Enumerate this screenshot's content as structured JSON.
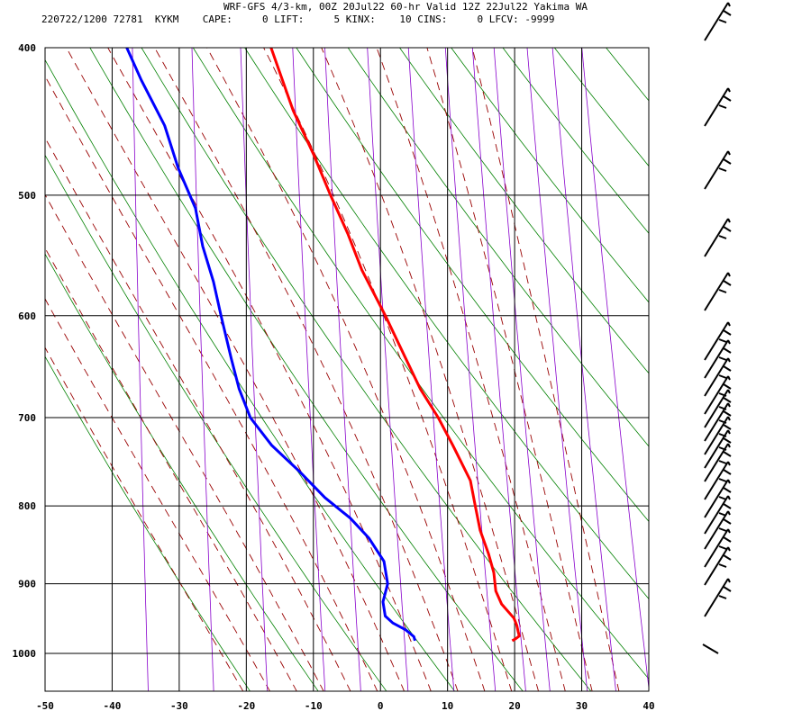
{
  "header": {
    "title": "WRF-GFS 4/3-km, 00Z 20Jul22 60-hr Valid 12Z 22Jul22 Yakima WA",
    "subtitle": "220722/1200 72781  KYKM    CAPE:     0 LIFT:     5 KINX:    10 CINS:     0 LFCV: -9999"
  },
  "chart_data": {
    "type": "line",
    "title": "WRF-GFS 4/3-km, 00Z 20Jul22 60-hr Valid 12Z 22Jul22 Yakima WA",
    "xlabel": "",
    "ylabel": "",
    "xlim": [
      -50,
      40
    ],
    "ylim": [
      1050,
      400
    ],
    "y_scale": "log-pressure",
    "skew": "skew-T",
    "x_ticks": [
      -50,
      -40,
      -30,
      -20,
      -10,
      0,
      10,
      20,
      30,
      40
    ],
    "x_tick_labels": [
      "-50",
      "-40",
      "-30",
      "-20",
      "-10",
      "0",
      "10",
      "20",
      "30",
      "40"
    ],
    "y_ticks": [
      400,
      500,
      600,
      700,
      800,
      900,
      1000
    ],
    "y_tick_labels": [
      "400",
      "500",
      "600",
      "700",
      "800",
      "900",
      "1000"
    ],
    "grid": true,
    "series": [
      {
        "color": "#ff0000",
        "p": [
          981,
          978,
          974,
          968,
          958,
          948,
          928,
          910,
          885,
          860,
          830,
          800,
          770,
          730,
          700,
          670,
          640,
          600,
          560,
          530,
          500,
          470,
          440,
          400
        ],
        "x": [
          19.5,
          20.0,
          20.5,
          20.3,
          20.0,
          19.5,
          17.5,
          16.5,
          16.0,
          15.0,
          13.5,
          12.5,
          11.5,
          8.5,
          6.0,
          3.0,
          0.5,
          -3.0,
          -7.0,
          -9.5,
          -12.5,
          -15.5,
          -19.0,
          -23.0
        ]
      },
      {
        "color": "#0000ff",
        "p": [
          981,
          975,
          965,
          955,
          945,
          925,
          900,
          870,
          840,
          815,
          790,
          760,
          730,
          700,
          670,
          640,
          600,
          570,
          540,
          510,
          480,
          450,
          420,
          400
        ],
        "x": [
          5.0,
          4.8,
          3.5,
          1.5,
          0.3,
          -0.2,
          0.3,
          -0.5,
          -3.0,
          -6.0,
          -10.0,
          -14.0,
          -18.5,
          -22.0,
          -24.0,
          -25.5,
          -27.5,
          -29.0,
          -31.0,
          -32.5,
          -35.5,
          -38.0,
          -42.0,
          -44.5
        ]
      }
    ],
    "dry_adiabat_color": "#008000",
    "moist_adiabat_color": "#990000",
    "mixing_ratio_color": "#8800cc",
    "wind_barb_color": "#000000"
  }
}
